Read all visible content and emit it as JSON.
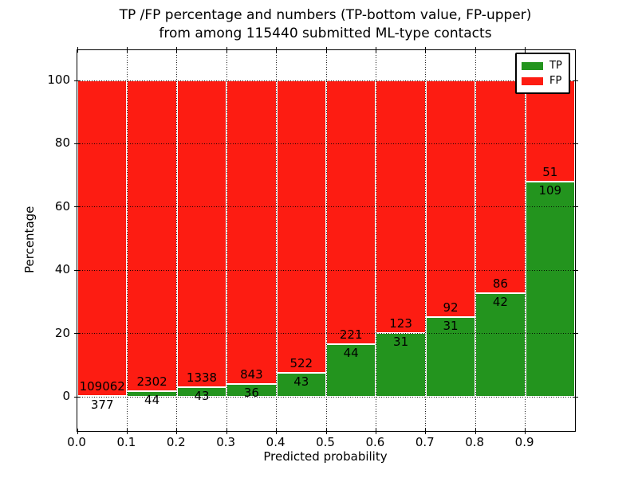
{
  "title": {
    "line1": "TP /FP percentage and numbers (TP-bottom value, FP-upper)",
    "line2": "from among 115440 submitted ML-type contacts"
  },
  "chart_data": {
    "type": "bar",
    "stacked": true,
    "normalized_to_percent": true,
    "total_contacts": 115440,
    "bin_start": [
      0.0,
      0.1,
      0.2,
      0.3,
      0.4,
      0.5,
      0.6,
      0.7,
      0.8,
      0.9
    ],
    "bin_width": 0.1,
    "series": [
      {
        "name": "TP",
        "color": "#23941e",
        "values": [
          377,
          44,
          43,
          36,
          43,
          44,
          31,
          31,
          42,
          109
        ]
      },
      {
        "name": "FP",
        "color": "#fd1c12",
        "values": [
          109062,
          2302,
          1338,
          843,
          522,
          221,
          123,
          92,
          86,
          51
        ]
      }
    ],
    "xlabel": "Predicted probability",
    "ylabel": "Percentage",
    "xlim": [
      0.0,
      1.0
    ],
    "ylim": [
      -10.83,
      109.58
    ],
    "xtick_labels": [
      "0.0",
      "0.1",
      "0.2",
      "0.3",
      "0.4",
      "0.5",
      "0.6",
      "0.7",
      "0.8",
      "0.9"
    ],
    "xtick_values": [
      0.0,
      0.1,
      0.2,
      0.3,
      0.4,
      0.5,
      0.6,
      0.7,
      0.8,
      0.9
    ],
    "ytick_labels": [
      "0",
      "20",
      "40",
      "60",
      "80",
      "100"
    ],
    "ytick_values": [
      0,
      20,
      40,
      60,
      80,
      100
    ],
    "grid": "dotted",
    "grid_over_bars": true,
    "bar_edge_color": "#ffffff",
    "legend": {
      "position": "upper right",
      "entries": [
        {
          "label": "TP",
          "color": "#23941e"
        },
        {
          "label": "FP",
          "color": "#fd1c12"
        }
      ]
    }
  }
}
